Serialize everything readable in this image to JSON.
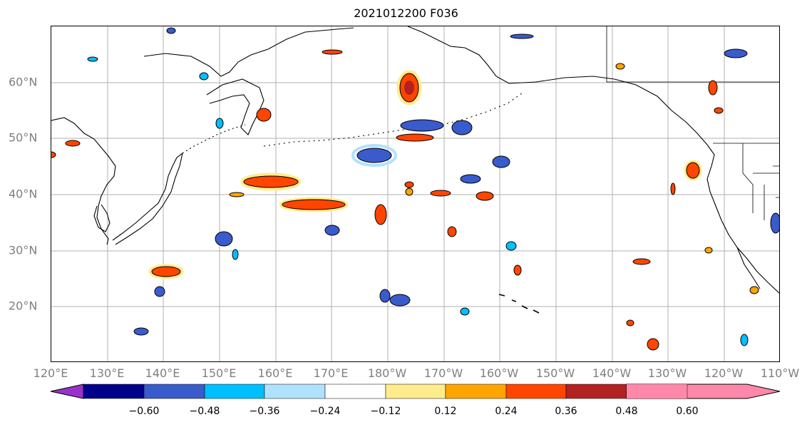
{
  "title": "2021012200 F036",
  "map": {
    "lat_labels": [
      "60°N",
      "50°N",
      "40°N",
      "30°N",
      "20°N"
    ],
    "lon_labels": [
      "120°E",
      "130°E",
      "140°E",
      "150°E",
      "160°E",
      "170°E",
      "180°W",
      "170°W",
      "160°W",
      "150°W",
      "140°W",
      "130°W",
      "120°W",
      "110°W"
    ],
    "gridlines": true,
    "extent": {
      "lon_min": 120,
      "lon_max": 250,
      "lat_min": 10,
      "lat_max": 70
    }
  },
  "colorbar": {
    "tick_labels": [
      "−0.60",
      "−0.48",
      "−0.36",
      "−0.24",
      "−0.12",
      "0.12",
      "0.24",
      "0.36",
      "0.48",
      "0.60"
    ],
    "colors": [
      "#9932cc",
      "#00008b",
      "#3a5bcc",
      "#00bfff",
      "#b0e2ff",
      "#ffffff",
      "#ffec8b",
      "#ffa500",
      "#ff4500",
      "#b22222",
      "#ff88aa"
    ],
    "extend": "both"
  }
}
